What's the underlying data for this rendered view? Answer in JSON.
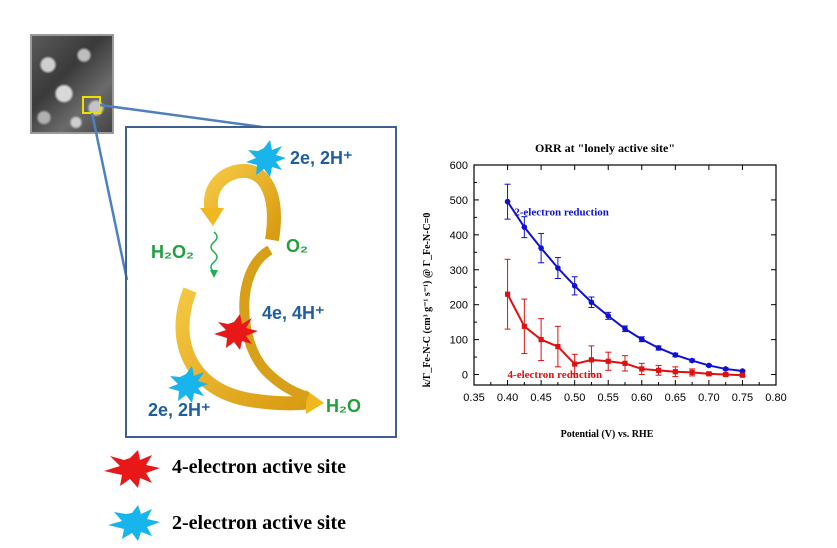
{
  "mechanism": {
    "top_label": "2e, 2H⁺",
    "o2_label": "O₂",
    "h2o2_label": "H₂O₂",
    "mid_label": "4e, 4H⁺",
    "bottom_label": "2e, 2H⁺",
    "h2o_label": "H₂O"
  },
  "legend": {
    "four_electron": "4-electron active site",
    "two_electron": "2-electron active site"
  },
  "colors": {
    "star_red": "#e81818",
    "star_cyan": "#18b4ec",
    "arrow_gold": "#e8b020",
    "frame_blue": "#3f5f8f",
    "series_blue": "#1010d0",
    "series_red": "#e01010"
  },
  "chart_data": {
    "type": "line",
    "title": "ORR at \"lonely active site\"",
    "xlabel": "Potential (V) vs. RHE",
    "ylabel": "k/Γ_Fe-N-C (cm³ g⁻¹ s⁻¹) @ Γ_Fe-N-C=0",
    "xlim": [
      0.35,
      0.8
    ],
    "ylim": [
      -30,
      600
    ],
    "xticks": [
      0.35,
      0.4,
      0.45,
      0.5,
      0.55,
      0.6,
      0.65,
      0.7,
      0.75,
      0.8
    ],
    "xtick_labels": [
      "0.35",
      "0.40",
      "0.45",
      "0.50",
      "0.55",
      "0.60",
      "0.65",
      "0.70",
      "0.75",
      "0.80"
    ],
    "yticks": [
      0,
      100,
      200,
      300,
      400,
      500,
      600
    ],
    "ytick_labels": [
      "0",
      "100",
      "200",
      "300",
      "400",
      "500",
      "600"
    ],
    "series": [
      {
        "name": "2-electron reduction",
        "x": [
          0.4,
          0.425,
          0.45,
          0.475,
          0.5,
          0.525,
          0.55,
          0.575,
          0.6,
          0.625,
          0.65,
          0.675,
          0.7,
          0.725,
          0.75
        ],
        "y": [
          495,
          422,
          362,
          305,
          254,
          207,
          168,
          131,
          101,
          76,
          56,
          40,
          26,
          16,
          10
        ],
        "err": [
          50,
          30,
          42,
          30,
          26,
          15,
          10,
          8,
          7,
          6,
          5,
          4,
          3,
          3,
          2
        ]
      },
      {
        "name": "4-electron reduction",
        "x": [
          0.4,
          0.425,
          0.45,
          0.475,
          0.5,
          0.525,
          0.55,
          0.575,
          0.6,
          0.625,
          0.65,
          0.675,
          0.7,
          0.725,
          0.75
        ],
        "y": [
          230,
          138,
          100,
          80,
          30,
          42,
          38,
          32,
          16,
          12,
          8,
          6,
          2,
          0,
          -2
        ],
        "err": [
          100,
          78,
          60,
          58,
          28,
          40,
          26,
          22,
          16,
          14,
          14,
          10,
          4,
          4,
          4
        ]
      }
    ]
  }
}
